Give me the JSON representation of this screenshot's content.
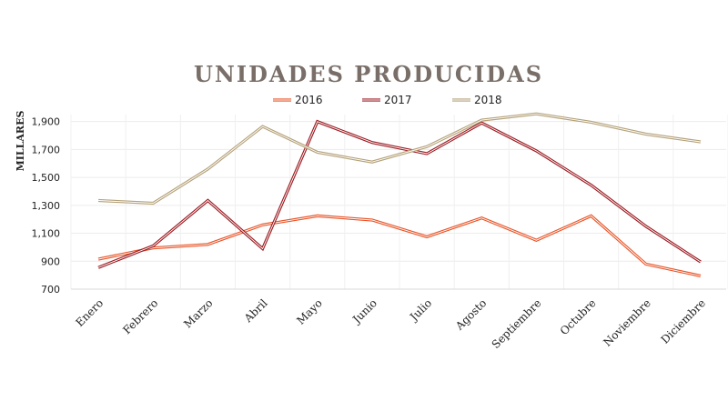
{
  "chart_data": {
    "type": "line",
    "title": "UNIDADES PRODUCIDAS",
    "ylabel": "MILLARES",
    "xlabel": "",
    "categories": [
      "Enero",
      "Febrero",
      "Marzo",
      "Abril",
      "Mayo",
      "Junio",
      "Julio",
      "Agosto",
      "Septiembre",
      "Octubre",
      "Noviembre",
      "Diciembre"
    ],
    "ylim": [
      700,
      1950
    ],
    "yticks": [
      700,
      900,
      1100,
      1300,
      1500,
      1700,
      1900
    ],
    "ytick_labels": [
      "700",
      "900",
      "1,100",
      "1,300",
      "1,500",
      "1,700",
      "1,900"
    ],
    "legend_position": "top",
    "grid": true,
    "series": [
      {
        "name": "2016",
        "color": "#e8562a",
        "values": [
          915,
          995,
          1020,
          1160,
          1225,
          1195,
          1075,
          1210,
          1050,
          1225,
          880,
          795
        ]
      },
      {
        "name": "2017",
        "color": "#9c1e24",
        "values": [
          855,
          1010,
          1335,
          990,
          1900,
          1750,
          1670,
          1890,
          1690,
          1445,
          1150,
          895
        ]
      },
      {
        "name": "2018",
        "color": "#b5a27a",
        "values": [
          1335,
          1315,
          1560,
          1865,
          1680,
          1610,
          1720,
          1910,
          1955,
          1895,
          1810,
          1755
        ]
      }
    ]
  }
}
